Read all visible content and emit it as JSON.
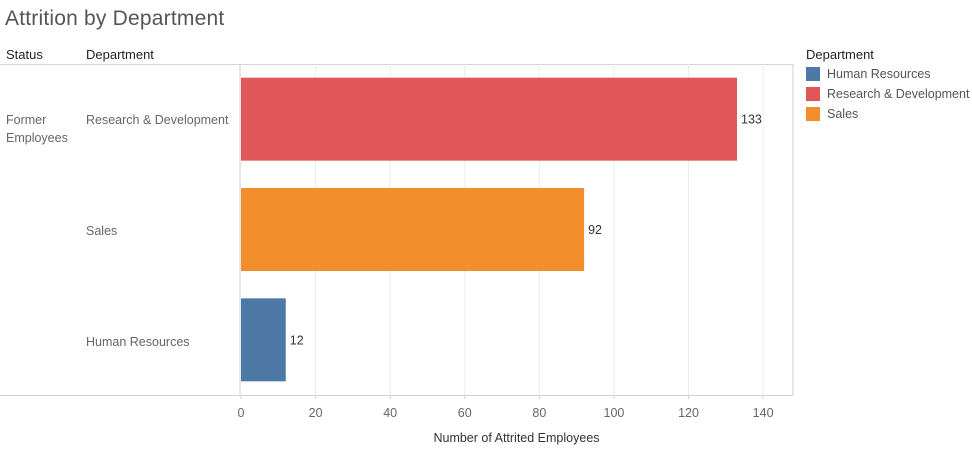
{
  "title": "Attrition by Department",
  "headers": {
    "status": "Status",
    "department": "Department"
  },
  "status_value": "Former Employees",
  "legend": {
    "title": "Department",
    "items": [
      {
        "label": "Human Resources",
        "color": "#4e79a7"
      },
      {
        "label": "Research & Development",
        "color": "#e15759"
      },
      {
        "label": "Sales",
        "color": "#f28e2b"
      }
    ]
  },
  "chart_data": {
    "type": "bar",
    "orientation": "horizontal",
    "categories": [
      "Research & Development",
      "Sales",
      "Human Resources"
    ],
    "values": [
      133,
      92,
      12
    ],
    "colors": [
      "#e15759",
      "#f28e2b",
      "#4e79a7"
    ],
    "title": "Attrition by Department",
    "xlabel": "Number of Attrited Employees",
    "ylabel": "Department",
    "xlim": [
      0,
      148
    ],
    "xticks": [
      0,
      20,
      40,
      60,
      80,
      100,
      120,
      140
    ],
    "grid": true,
    "data_labels": true,
    "legend_position": "right"
  }
}
